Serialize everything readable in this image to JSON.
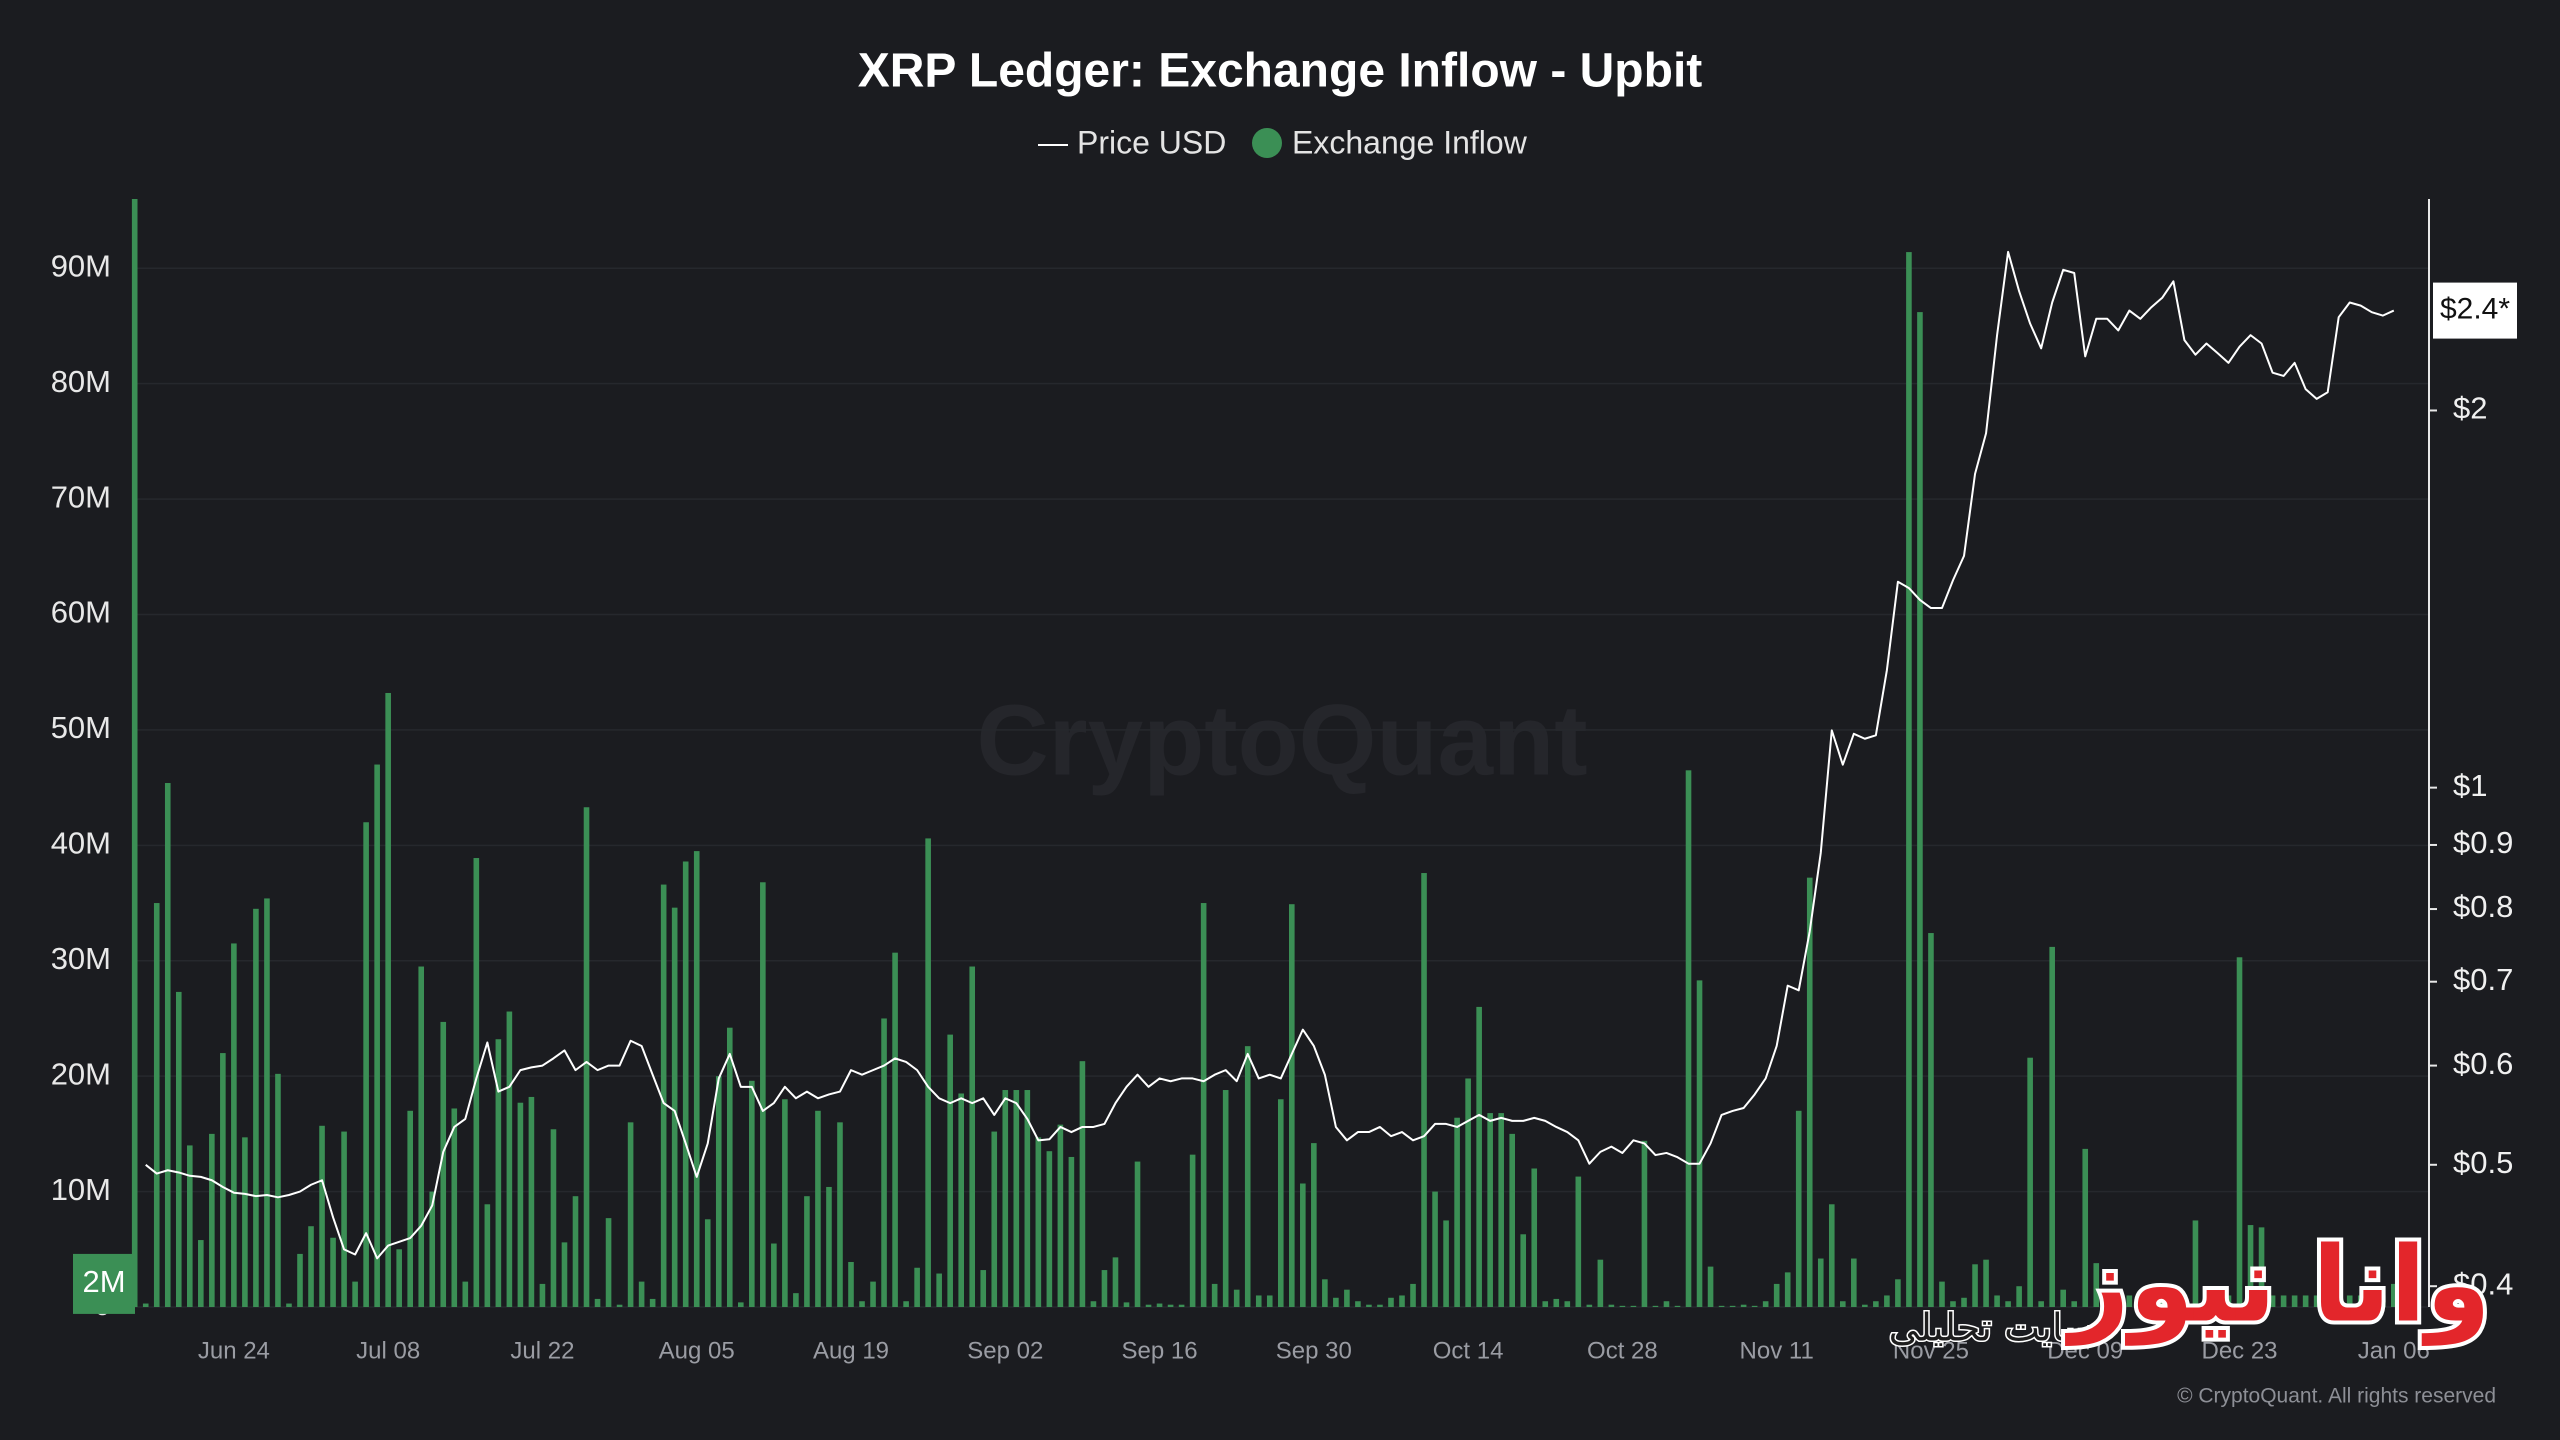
{
  "chart_data": {
    "type": "combo",
    "title": "XRP Ledger: Exchange Inflow - Upbit",
    "watermark": "CryptoQuant",
    "copyright": "© CryptoQuant. All rights reserved",
    "overlay": {
      "logo": "وانا نیوز",
      "tagline": "سایت تحلیلی"
    },
    "categories": [
      null,
      null,
      null,
      null,
      null,
      null,
      null,
      null,
      null,
      "Jun 24",
      null,
      null,
      null,
      null,
      null,
      null,
      null,
      null,
      null,
      null,
      null,
      null,
      null,
      "Jul 08",
      null,
      null,
      null,
      null,
      null,
      null,
      null,
      null,
      null,
      null,
      null,
      null,
      null,
      "Jul 22",
      null,
      null,
      null,
      null,
      null,
      null,
      null,
      null,
      null,
      null,
      null,
      null,
      null,
      "Aug 05",
      null,
      null,
      null,
      null,
      null,
      null,
      null,
      null,
      null,
      null,
      null,
      null,
      null,
      "Aug 19",
      null,
      null,
      null,
      null,
      null,
      null,
      null,
      null,
      null,
      null,
      null,
      null,
      null,
      "Sep 02",
      null,
      null,
      null,
      null,
      null,
      null,
      null,
      null,
      null,
      null,
      null,
      null,
      null,
      "Sep 16",
      null,
      null,
      null,
      null,
      null,
      null,
      null,
      null,
      null,
      null,
      null,
      null,
      null,
      "Sep 30",
      null,
      null,
      null,
      null,
      null,
      null,
      null,
      null,
      null,
      null,
      null,
      null,
      null,
      "Oct 14",
      null,
      null,
      null,
      null,
      null,
      null,
      null,
      null,
      null,
      null,
      null,
      null,
      null,
      "Oct 28",
      null,
      null,
      null,
      null,
      null,
      null,
      null,
      null,
      null,
      null,
      null,
      null,
      null,
      "Nov 11",
      null,
      null,
      null,
      null,
      null,
      null,
      null,
      null,
      null,
      null,
      null,
      null,
      null,
      "Nov 25",
      null,
      null,
      null,
      null,
      null,
      null,
      null,
      null,
      null,
      null,
      null,
      null,
      null,
      "Dec 09",
      null,
      null,
      null,
      null,
      null,
      null,
      null,
      null,
      null,
      null,
      null,
      null,
      null,
      "Dec 23",
      null,
      null,
      null,
      null,
      null,
      null,
      null,
      null,
      null,
      null,
      null,
      null,
      null,
      "Jan 06"
    ],
    "series": [
      {
        "name": "Price USD",
        "type": "line",
        "axis": "y2",
        "color": "#ffffff",
        "last_label": "$2.4*",
        "values": [
          null,
          0.5,
          0.492,
          0.495,
          0.493,
          0.49,
          0.489,
          0.486,
          0.48,
          0.475,
          0.474,
          0.472,
          0.473,
          0.471,
          0.473,
          0.476,
          0.482,
          0.486,
          0.454,
          0.428,
          0.424,
          0.441,
          0.421,
          0.431,
          0.434,
          0.437,
          0.447,
          0.464,
          0.512,
          0.536,
          0.544,
          0.586,
          0.626,
          0.572,
          0.577,
          0.595,
          0.598,
          0.6,
          0.608,
          0.617,
          0.595,
          0.604,
          0.595,
          0.6,
          0.6,
          0.628,
          0.622,
          0.59,
          0.56,
          0.552,
          0.52,
          0.489,
          0.52,
          0.586,
          0.613,
          0.577,
          0.577,
          0.552,
          0.56,
          0.577,
          0.565,
          0.572,
          0.565,
          0.569,
          0.572,
          0.595,
          0.59,
          0.595,
          0.6,
          0.608,
          0.604,
          0.595,
          0.577,
          0.565,
          0.56,
          0.565,
          0.56,
          0.565,
          0.548,
          0.565,
          0.56,
          0.544,
          0.523,
          0.524,
          0.536,
          0.531,
          0.536,
          0.536,
          0.539,
          0.56,
          0.577,
          0.59,
          0.577,
          0.586,
          0.583,
          0.586,
          0.586,
          0.583,
          0.59,
          0.595,
          0.583,
          0.613,
          0.586,
          0.59,
          0.586,
          0.613,
          0.641,
          0.622,
          0.59,
          0.536,
          0.523,
          0.531,
          0.531,
          0.536,
          0.527,
          0.531,
          0.523,
          0.527,
          0.539,
          0.539,
          0.536,
          0.542,
          0.548,
          0.542,
          0.545,
          0.542,
          0.542,
          0.545,
          0.542,
          0.536,
          0.531,
          0.523,
          0.501,
          0.512,
          0.517,
          0.511,
          0.523,
          0.52,
          0.509,
          0.511,
          0.507,
          0.501,
          0.501,
          0.52,
          0.548,
          0.552,
          0.555,
          0.569,
          0.586,
          0.622,
          0.695,
          0.689,
          0.768,
          0.887,
          1.111,
          1.043,
          1.104,
          1.094,
          1.101,
          1.241,
          1.46,
          1.443,
          1.412,
          1.391,
          1.391,
          1.464,
          1.531,
          1.78,
          1.918,
          2.297,
          2.677,
          2.49,
          2.346,
          2.242,
          2.439,
          2.59,
          2.575,
          2.209,
          2.367,
          2.367,
          2.317,
          2.403,
          2.367,
          2.418,
          2.461,
          2.536,
          2.276,
          2.216,
          2.262,
          2.223,
          2.183,
          2.249,
          2.297,
          2.262,
          2.144,
          2.131,
          2.183,
          2.08,
          2.043,
          2.068,
          2.374,
          2.439,
          2.425,
          2.396,
          2.381,
          2.403
        ]
      },
      {
        "name": "Exchange Inflow",
        "type": "bar",
        "axis": "y",
        "color": "#3b8f55",
        "last_label": "2M",
        "values": [
          96,
          0.3,
          35,
          45.4,
          27.3,
          14,
          5.8,
          15,
          22,
          31.5,
          14.7,
          34.5,
          35.4,
          20.2,
          0.3,
          4.6,
          7,
          15.7,
          6,
          15.2,
          2.2,
          42,
          47,
          53.2,
          5,
          17,
          29.5,
          10,
          24.7,
          17.2,
          2.2,
          38.9,
          8.9,
          23.2,
          25.6,
          17.7,
          18.2,
          2,
          15.4,
          5.6,
          9.6,
          43.3,
          0.7,
          7.7,
          0.2,
          16,
          2.2,
          0.7,
          36.6,
          34.6,
          38.6,
          39.5,
          7.6,
          20,
          24.2,
          0.4,
          19.6,
          36.8,
          5.5,
          18,
          1.2,
          9.6,
          17,
          10.4,
          16,
          3.9,
          0.5,
          2.2,
          25,
          30.7,
          0.5,
          3.4,
          40.6,
          2.9,
          23.6,
          18.5,
          29.5,
          3.2,
          15.2,
          18.8,
          18.8,
          18.8,
          14.7,
          13.5,
          15.8,
          13,
          21.3,
          0.5,
          3.2,
          4.3,
          0.4,
          12.6,
          0.2,
          0.3,
          0.2,
          0.2,
          13.2,
          35,
          2,
          18.8,
          1.5,
          22.6,
          1,
          1,
          18,
          34.9,
          10.7,
          14.2,
          2.4,
          0.8,
          1.5,
          0.5,
          0.2,
          0.2,
          0.8,
          1,
          2,
          37.6,
          10,
          7.5,
          16.4,
          19.8,
          26,
          16.8,
          16.8,
          15,
          6.3,
          12,
          0.5,
          0.7,
          0.5,
          11.3,
          0.2,
          4.1,
          0.2,
          0.1,
          0.1,
          14.4,
          0.1,
          0.5,
          0.1,
          46.5,
          28.3,
          3.5,
          0.1,
          0.1,
          0.2,
          0.1,
          0.5,
          2,
          3,
          17,
          37.2,
          4.2,
          8.9,
          0.5,
          4.2,
          0.2,
          0.5,
          1,
          2.4,
          91.4,
          86.2,
          32.4,
          2.2,
          0.5,
          0.8,
          3.7,
          4.1,
          1,
          0.5,
          1.8,
          21.6,
          0.5,
          31.2,
          1.5,
          0.5,
          13.7,
          3.8,
          1,
          1,
          1,
          1,
          1,
          1,
          1,
          1,
          7.5,
          1,
          1,
          1,
          30.3,
          7.1,
          6.9,
          1,
          1,
          1,
          1,
          1,
          1,
          1,
          1,
          1,
          1,
          1,
          2
        ]
      }
    ],
    "ylim": [
      0,
      96
    ],
    "yticks": [
      0,
      {
        "value": 10,
        "label": "10M"
      },
      {
        "value": 20,
        "label": "20M"
      },
      {
        "value": 30,
        "label": "30M"
      },
      {
        "value": 40,
        "label": "40M"
      },
      {
        "value": 50,
        "label": "50M"
      },
      {
        "value": 60,
        "label": "60M"
      },
      {
        "value": 70,
        "label": "70M"
      },
      {
        "value": 80,
        "label": "80M"
      },
      {
        "value": 90,
        "label": "90M"
      }
    ],
    "y2lim": [
      0.385,
      2.95
    ],
    "y2scale": "log",
    "y2ticks": [
      {
        "value": 0.4,
        "label": "$0.4"
      },
      {
        "value": 0.5,
        "label": "$0.5"
      },
      {
        "value": 0.6,
        "label": "$0.6"
      },
      {
        "value": 0.7,
        "label": "$0.7"
      },
      {
        "value": 0.8,
        "label": "$0.8"
      },
      {
        "value": 0.9,
        "label": "$0.9"
      },
      {
        "value": 1,
        "label": "$1"
      },
      {
        "value": 2,
        "label": "$2"
      }
    ],
    "grid": true
  }
}
